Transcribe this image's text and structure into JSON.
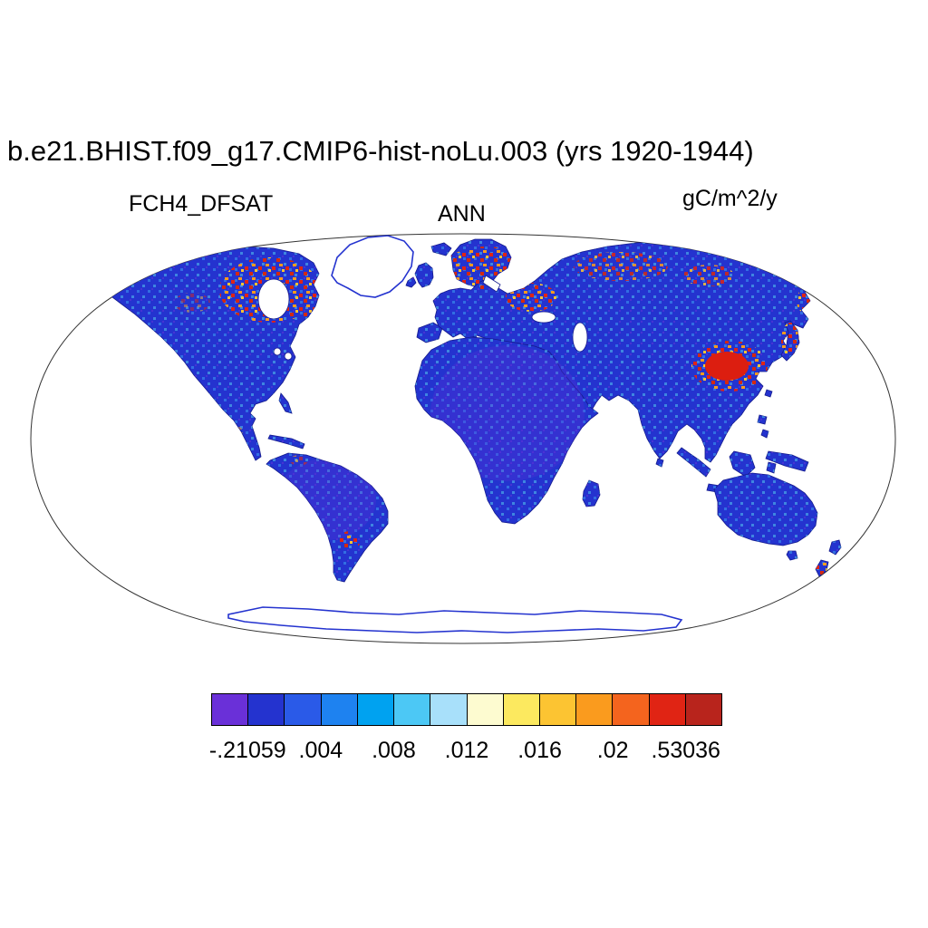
{
  "title": "b.e21.BHIST.f09_g17.CMIP6-hist-noLu.003 (yrs 1920-1944)",
  "header": {
    "variable": "FCH4_DFSAT",
    "season": "ANN",
    "units": "gC/m^2/y"
  },
  "colors": {
    "land": "#2433cf",
    "coast": "#141b8c",
    "violet": "#5a2fd8",
    "hotsolid": "#dc1e10",
    "ocean": "#ffffff"
  },
  "chart_data": {
    "type": "heatmap",
    "projection": "robinson-world-map",
    "title": "b.e21.BHIST.f09_g17.CMIP6-hist-noLu.003 (yrs 1920-1944)",
    "variable": "FCH4_DFSAT",
    "season": "ANN",
    "units": "gC/m^2/y",
    "value_range": [
      -0.21059,
      0.53036
    ],
    "colorbar_orientation": "horizontal",
    "colorbar": {
      "n_boxes": 14,
      "colors": [
        "#6a30d8",
        "#2433cf",
        "#2a5ae8",
        "#1e82f0",
        "#00a2f0",
        "#4cc8f5",
        "#a8e0fa",
        "#fdfbd0",
        "#fce95f",
        "#fcc432",
        "#fa9b1e",
        "#f4641e",
        "#e02414",
        "#b8241c"
      ],
      "tick_labels": [
        "-.21059",
        ".004",
        ".008",
        ".012",
        ".016",
        ".02",
        ".53036"
      ],
      "tick_positions": [
        1,
        3,
        5,
        7,
        9,
        11,
        13
      ]
    },
    "high_value_regions": [
      "central Canada around Hudson Bay",
      "Labrador/Quebec",
      "Scandinavia and Baltic region",
      "western Russia",
      "scattered Siberia",
      "Kamchatka",
      "eastern China (strongest maximum)",
      "Japan",
      "Rio de la Plata region of Argentina",
      "New Zealand",
      "interior Alaska"
    ],
    "low_value_regions": [
      "most vegetated land shown deep blue/violet (Africa, Amazonia, Australia, most of Eurasia and the Americas)"
    ],
    "no_data_regions": [
      "ocean (white)",
      "Greenland interior (white, outlined)",
      "Antarctica (white, outlined)"
    ]
  }
}
